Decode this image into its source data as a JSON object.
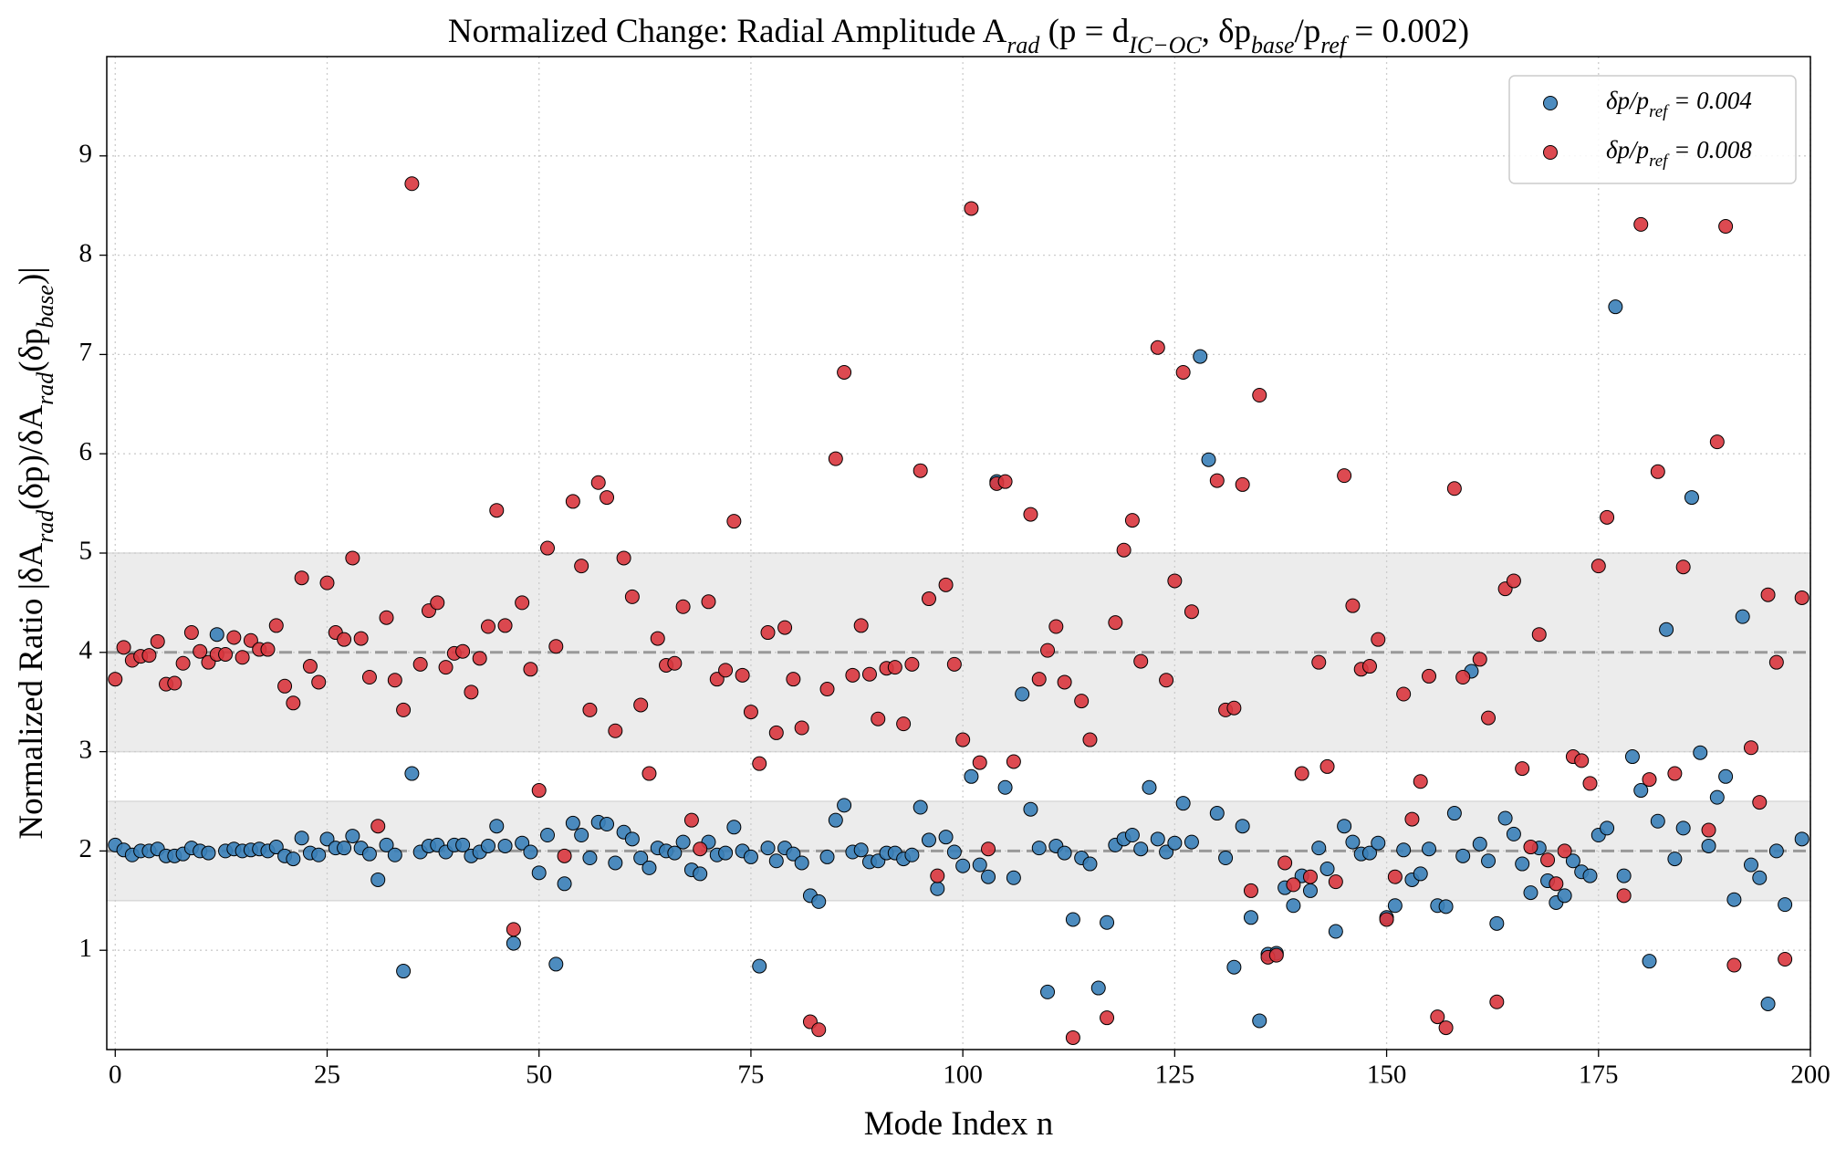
{
  "chart_data": {
    "type": "scatter",
    "title": [
      "Normalized Change: Radial Amplitude A",
      {
        "sub": "rad"
      },
      " (p = d",
      {
        "sub": "IC−OC"
      },
      ", δp",
      {
        "sub": "base"
      },
      "/p",
      {
        "sub": "ref"
      },
      " = 0.002)"
    ],
    "xlabel": [
      "Mode Index n"
    ],
    "ylabel": [
      "Normalized Ratio |δA",
      {
        "sub": "rad"
      },
      "(δp)/δA",
      {
        "sub": "rad"
      },
      "(δp",
      {
        "sub": "base"
      },
      ")|"
    ],
    "xlim": [
      -1,
      200
    ],
    "ylim": [
      0,
      10
    ],
    "xticks": [
      0,
      25,
      50,
      75,
      100,
      125,
      150,
      175,
      200
    ],
    "yticks": [
      1,
      2,
      3,
      4,
      5,
      6,
      7,
      8,
      9
    ],
    "grid": true,
    "legend": "upper right",
    "bands": [
      [
        1.5,
        2.5
      ],
      [
        3,
        5
      ]
    ],
    "band_color": "#d9d9d9",
    "reference_lines": [
      2,
      4
    ],
    "reference_color": "#999999",
    "x": [
      0,
      1,
      2,
      3,
      4,
      5,
      6,
      7,
      8,
      9,
      10,
      11,
      12,
      13,
      14,
      15,
      16,
      17,
      18,
      19,
      20,
      21,
      22,
      23,
      24,
      25,
      26,
      27,
      28,
      29,
      30,
      31,
      32,
      33,
      34,
      35,
      36,
      37,
      38,
      39,
      40,
      41,
      42,
      43,
      44,
      45,
      46,
      47,
      48,
      49,
      50,
      51,
      52,
      53,
      54,
      55,
      56,
      57,
      58,
      59,
      60,
      61,
      62,
      63,
      64,
      65,
      66,
      67,
      68,
      69,
      70,
      71,
      72,
      73,
      74,
      75,
      76,
      77,
      78,
      79,
      80,
      81,
      82,
      83,
      84,
      85,
      86,
      87,
      88,
      89,
      90,
      91,
      92,
      93,
      94,
      95,
      96,
      97,
      98,
      99,
      100,
      101,
      102,
      103,
      104,
      105,
      106,
      107,
      108,
      109,
      110,
      111,
      112,
      113,
      114,
      115,
      116,
      117,
      118,
      119,
      120,
      121,
      122,
      123,
      124,
      125,
      126,
      127,
      128,
      129,
      130,
      131,
      132,
      133,
      134,
      135,
      136,
      137,
      138,
      139,
      140,
      141,
      142,
      143,
      144,
      145,
      146,
      147,
      148,
      149,
      150,
      151,
      152,
      153,
      154,
      155,
      156,
      157,
      158,
      159,
      160,
      161,
      162,
      163,
      164,
      165,
      166,
      167,
      168,
      169,
      170,
      171,
      172,
      173,
      174,
      175,
      176,
      177,
      178,
      179,
      180,
      181,
      182,
      183,
      184,
      185,
      186,
      187,
      188,
      189,
      190,
      191,
      192,
      193,
      194,
      195,
      196,
      197,
      198,
      199
    ],
    "series": [
      {
        "name": [
          "δp/p",
          {
            "sub": "ref"
          },
          " = 0.004"
        ],
        "color": "#3a7fb8",
        "values": [
          2.06,
          2.01,
          1.96,
          2.0,
          2.0,
          2.02,
          1.95,
          1.95,
          1.97,
          2.03,
          2.0,
          1.98,
          4.18,
          2.0,
          2.02,
          2.0,
          2.01,
          2.02,
          2.0,
          2.04,
          1.95,
          1.92,
          2.13,
          1.98,
          1.96,
          2.12,
          2.03,
          2.03,
          2.15,
          2.03,
          1.97,
          1.71,
          2.06,
          1.96,
          0.79,
          2.78,
          1.99,
          2.05,
          2.06,
          1.99,
          2.06,
          2.06,
          1.95,
          1.99,
          2.05,
          2.25,
          2.05,
          1.07,
          2.08,
          1.99,
          1.78,
          2.16,
          0.86,
          1.67,
          2.28,
          2.16,
          1.93,
          2.29,
          2.27,
          1.88,
          2.19,
          2.12,
          1.93,
          1.83,
          2.03,
          2.0,
          1.98,
          2.09,
          1.81,
          1.77,
          2.09,
          1.96,
          1.98,
          2.24,
          2.0,
          1.94,
          0.84,
          2.03,
          1.9,
          2.03,
          1.97,
          1.88,
          1.55,
          1.49,
          1.94,
          2.31,
          2.46,
          1.99,
          2.01,
          1.89,
          1.9,
          1.98,
          1.98,
          1.92,
          1.96,
          2.44,
          2.11,
          1.62,
          2.14,
          1.99,
          1.85,
          2.75,
          1.86,
          1.74,
          5.72,
          2.64,
          1.73,
          3.58,
          2.42,
          2.03,
          0.58,
          2.05,
          1.98,
          1.31,
          1.93,
          1.87,
          0.62,
          1.28,
          2.06,
          2.12,
          2.16,
          2.02,
          2.64,
          2.12,
          1.99,
          2.08,
          2.48,
          2.09,
          6.98,
          5.94,
          2.38,
          1.93,
          0.83,
          2.25,
          1.33,
          0.29,
          0.96,
          0.97,
          1.63,
          1.45,
          1.75,
          1.6,
          2.03,
          1.82,
          1.19,
          2.25,
          2.09,
          1.97,
          1.98,
          2.08,
          1.33,
          1.45,
          2.01,
          1.71,
          1.77,
          2.02,
          1.45,
          1.44,
          2.38,
          1.95,
          3.81,
          2.07,
          1.9,
          1.27,
          2.33,
          2.17,
          1.87,
          1.58,
          2.03,
          1.7,
          1.48,
          1.55,
          1.9,
          1.79,
          1.75,
          2.16,
          2.23,
          7.48,
          1.75,
          2.95,
          2.61,
          0.89,
          2.3,
          4.23,
          1.92,
          2.23,
          5.56,
          2.99,
          2.05,
          2.54,
          2.75,
          1.51,
          4.36,
          1.86,
          1.73,
          0.46,
          2.0,
          1.46,
          null,
          2.12
        ]
      },
      {
        "name": [
          "δp/p",
          {
            "sub": "ref"
          },
          " = 0.008"
        ],
        "color": "#d9363e",
        "values": [
          3.73,
          4.05,
          3.92,
          3.96,
          3.97,
          4.11,
          3.68,
          3.69,
          3.89,
          4.2,
          4.01,
          3.9,
          3.98,
          3.98,
          4.15,
          3.95,
          4.12,
          4.03,
          4.03,
          4.27,
          3.66,
          3.49,
          4.75,
          3.86,
          3.7,
          4.7,
          4.2,
          4.13,
          4.95,
          4.14,
          3.75,
          2.25,
          4.35,
          3.72,
          3.42,
          8.72,
          3.88,
          4.42,
          4.5,
          3.85,
          3.99,
          4.01,
          3.6,
          3.94,
          4.26,
          5.43,
          4.27,
          1.21,
          4.5,
          3.83,
          2.61,
          5.05,
          4.06,
          1.95,
          5.52,
          4.87,
          3.42,
          5.71,
          5.56,
          3.21,
          4.95,
          4.56,
          3.47,
          2.78,
          4.14,
          3.87,
          3.89,
          4.46,
          2.31,
          2.02,
          4.51,
          3.73,
          3.82,
          5.32,
          3.77,
          3.4,
          2.88,
          4.2,
          3.19,
          4.25,
          3.73,
          3.24,
          0.28,
          0.2,
          3.63,
          5.95,
          6.82,
          3.77,
          4.27,
          3.78,
          3.33,
          3.84,
          3.85,
          3.28,
          3.88,
          5.83,
          4.54,
          1.75,
          4.68,
          3.88,
          3.12,
          8.47,
          2.89,
          2.02,
          5.7,
          5.72,
          2.9,
          null,
          5.39,
          3.73,
          4.02,
          4.26,
          3.7,
          0.12,
          3.51,
          3.12,
          null,
          0.32,
          4.3,
          5.03,
          5.33,
          3.91,
          null,
          7.07,
          3.72,
          4.72,
          6.82,
          4.41,
          null,
          null,
          5.73,
          3.42,
          3.44,
          5.69,
          1.6,
          6.59,
          0.93,
          0.95,
          1.88,
          1.66,
          2.78,
          1.74,
          3.9,
          2.85,
          1.69,
          5.78,
          4.47,
          3.83,
          3.86,
          4.13,
          1.31,
          1.74,
          3.58,
          2.32,
          2.7,
          3.76,
          0.33,
          0.22,
          5.65,
          3.75,
          null,
          3.93,
          3.34,
          0.48,
          4.64,
          4.72,
          2.83,
          2.04,
          4.18,
          1.91,
          1.67,
          2.0,
          2.95,
          2.91,
          2.68,
          4.87,
          5.36,
          null,
          1.55,
          null,
          8.31,
          2.72,
          5.82,
          null,
          2.78,
          4.86,
          null,
          null,
          2.21,
          6.12,
          8.29,
          0.85,
          null,
          3.04,
          2.49,
          4.58,
          3.9,
          0.91,
          null,
          4.55
        ]
      }
    ]
  }
}
